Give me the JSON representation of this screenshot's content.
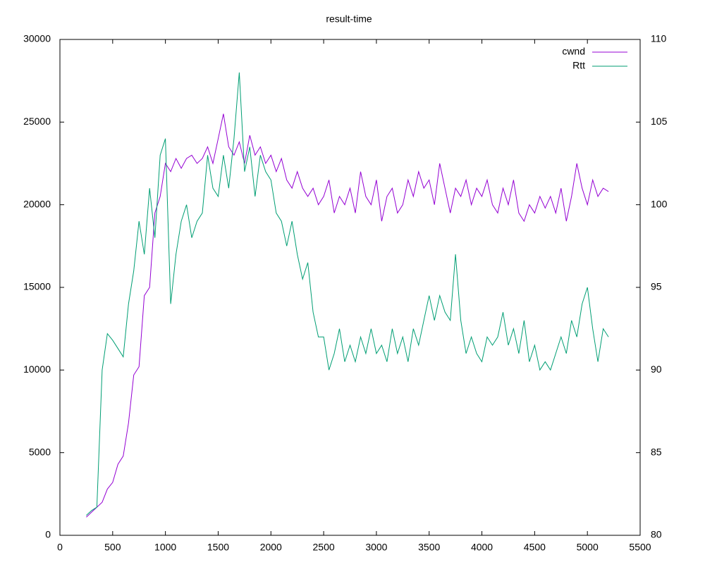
{
  "chart_data": {
    "type": "line",
    "title": "result-time",
    "x": [
      250,
      300,
      350,
      400,
      450,
      500,
      550,
      600,
      650,
      700,
      750,
      800,
      850,
      900,
      950,
      1000,
      1050,
      1100,
      1150,
      1200,
      1250,
      1300,
      1350,
      1400,
      1450,
      1500,
      1550,
      1600,
      1650,
      1700,
      1750,
      1800,
      1850,
      1900,
      1950,
      2000,
      2050,
      2100,
      2150,
      2200,
      2250,
      2300,
      2350,
      2400,
      2450,
      2500,
      2550,
      2600,
      2650,
      2700,
      2750,
      2800,
      2850,
      2900,
      2950,
      3000,
      3050,
      3100,
      3150,
      3200,
      3250,
      3300,
      3350,
      3400,
      3450,
      3500,
      3550,
      3600,
      3650,
      3700,
      3750,
      3800,
      3850,
      3900,
      3950,
      4000,
      4050,
      4100,
      4150,
      4200,
      4250,
      4300,
      4350,
      4400,
      4450,
      4500,
      4550,
      4600,
      4650,
      4700,
      4750,
      4800,
      4850,
      4900,
      4950,
      5000,
      5050,
      5100,
      5150,
      5200
    ],
    "series": [
      {
        "name": "cwnd",
        "color": "#9400d3",
        "values": [
          1100,
          1400,
          1700,
          2000,
          2800,
          3200,
          4300,
          4800,
          6800,
          9700,
          10200,
          14500,
          15000,
          19500,
          20500,
          22500,
          22000,
          22800,
          22200,
          22800,
          23000,
          22500,
          22800,
          23500,
          22500,
          24000,
          25500,
          23500,
          23000,
          23800,
          22500,
          24200,
          23000,
          23500,
          22500,
          23000,
          22000,
          22800,
          21500,
          21000,
          22000,
          21000,
          20500,
          21000,
          20000,
          20500,
          21500,
          19500,
          20500,
          20000,
          21000,
          19500,
          22000,
          20500,
          20000,
          21500,
          19000,
          20500,
          21000,
          19500,
          20000,
          21500,
          20500,
          22000,
          21000,
          21500,
          20000,
          22500,
          21000,
          19500,
          21000,
          20500,
          21500,
          20000,
          21000,
          20500,
          21500,
          20000,
          19500,
          21000,
          20000,
          21500,
          19500,
          19000,
          20000,
          19500,
          20500,
          19800,
          20500,
          19500,
          21000,
          19000,
          20500,
          22500,
          21000,
          20000,
          21500,
          20500,
          21000,
          20800
        ]
      },
      {
        "name": "Rtt",
        "color": "#009e73",
        "axis": "y2",
        "values": [
          81.2,
          81.5,
          81.7,
          90,
          92.2,
          91.8,
          91.3,
          90.8,
          94,
          96,
          99,
          97,
          101,
          98,
          103,
          104,
          94,
          97,
          99,
          100,
          98,
          99,
          99.5,
          103,
          101,
          100.5,
          103,
          101,
          104,
          108,
          102,
          103.5,
          100.5,
          103,
          102,
          101.5,
          99.5,
          99,
          97.5,
          99,
          97,
          95.5,
          96.5,
          93.5,
          92,
          92,
          90,
          91,
          92.5,
          90.5,
          91.5,
          90.5,
          92,
          91,
          92.5,
          91,
          91.5,
          90.5,
          92.5,
          91,
          92,
          90.5,
          92.5,
          91.5,
          93,
          94.5,
          93,
          94.5,
          93.5,
          93,
          97,
          93,
          91,
          92,
          91,
          90.5,
          92,
          91.5,
          92,
          93.5,
          91.5,
          92.5,
          91,
          93,
          90.5,
          91.5,
          90,
          90.5,
          90,
          91,
          92,
          91,
          93,
          92,
          94,
          95,
          92.5,
          90.5,
          92.5,
          92
        ]
      }
    ],
    "xlim": [
      0,
      5500
    ],
    "xticks": [
      0,
      500,
      1000,
      1500,
      2000,
      2500,
      3000,
      3500,
      4000,
      4500,
      5000,
      5500
    ],
    "ylim": [
      0,
      30000
    ],
    "yticks": [
      0,
      5000,
      10000,
      15000,
      20000,
      25000,
      30000
    ],
    "y2lim": [
      80,
      110
    ],
    "y2ticks": [
      80,
      85,
      90,
      95,
      100,
      105,
      110
    ],
    "legend": "top-right"
  }
}
